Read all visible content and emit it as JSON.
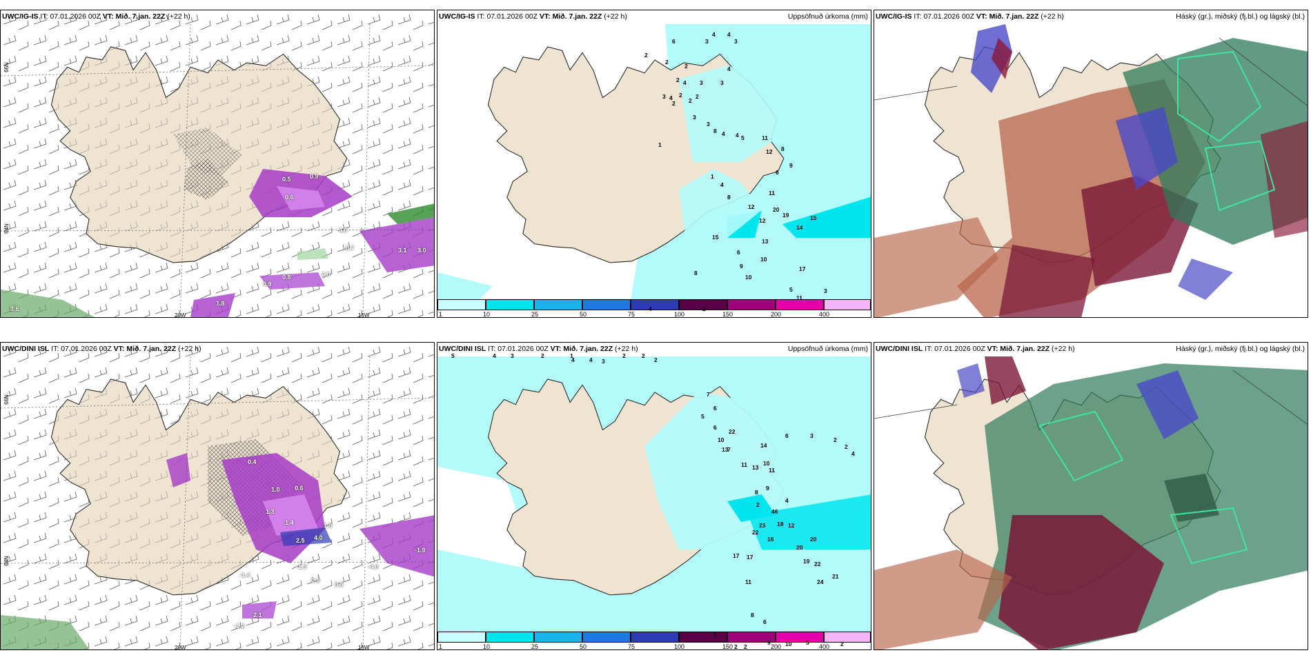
{
  "panels": [
    {
      "model": "UWC/IG-IS",
      "it_label": "IT:",
      "it": "07.01.2026 00Z",
      "vt_label": "VT:",
      "vt": "Mið. 7.jan. 22Z",
      "offset": "(+22 h)",
      "field": ""
    },
    {
      "model": "UWC/IG-IS",
      "it_label": "IT:",
      "it": "07.01.2026 00Z",
      "vt_label": "VT:",
      "vt": "Mið. 7.jan. 22Z",
      "offset": "(+22 h)",
      "field": "Uppsöfnuð úrkoma (mm)"
    },
    {
      "model": "UWC/IG-IS",
      "it_label": "IT:",
      "it": "07.01.2026 00Z",
      "vt_label": "VT:",
      "vt": "Mið. 7.jan. 22Z",
      "offset": "(+22 h)",
      "field": "Háský (gr.), miðský (fj.bl.) og lágský (bl.)"
    },
    {
      "model": "UWC/DINI ISL",
      "it_label": "IT:",
      "it": "07.01.2026 00Z",
      "vt_label": "VT:",
      "vt": "Mið. 7.jan. 22Z",
      "offset": "(+22 h)",
      "field": ""
    },
    {
      "model": "UWC/DINI ISL",
      "it_label": "IT:",
      "it": "07.01.2026 00Z",
      "vt_label": "VT:",
      "vt": "Mið. 7.jan. 22Z",
      "offset": "(+22 h)",
      "field": "Uppsöfnuð úrkoma (mm)"
    },
    {
      "model": "UWC/DINI ISL",
      "it_label": "IT:",
      "it": "07.01.2026 00Z",
      "vt_label": "VT:",
      "vt": "Mið. 7.jan. 22Z",
      "offset": "(+22 h)",
      "field": "Háský (gr.), miðský (fj.bl.) og lágský (bl.)"
    }
  ],
  "axes": {
    "lon_20w": "20W",
    "lon_15w": "15W",
    "lat_66n": "66N",
    "lat_64n": "64N"
  },
  "colorbar": {
    "labels": [
      "1",
      "10",
      "25",
      "50",
      "75",
      "100",
      "150",
      "200",
      "400"
    ],
    "colors": [
      "#c8ffff",
      "#00e5ee",
      "#19b4ee",
      "#1e78e6",
      "#2d3cb4",
      "#5a0046",
      "#a00078",
      "#e600aa",
      "#f5b4f5"
    ]
  },
  "precip_top": [
    "6",
    "3",
    "4",
    "4",
    "3",
    "2",
    "4",
    "2",
    "2",
    "2",
    "4",
    "2",
    "2",
    "2",
    "3",
    "3",
    "4",
    "1",
    "3",
    "2",
    "3",
    "3",
    "8",
    "4",
    "4",
    "5",
    "11",
    "12",
    "6",
    "8",
    "9",
    "1",
    "4",
    "8",
    "12",
    "11",
    "20",
    "19",
    "12",
    "14",
    "15",
    "13",
    "15",
    "6",
    "10",
    "17",
    "8",
    "9",
    "10",
    "5",
    "11",
    "3",
    "2",
    "4"
  ],
  "precip_bot": [
    "5",
    "4",
    "3",
    "2",
    "1",
    "4",
    "4",
    "3",
    "2",
    "2",
    "2",
    "7",
    "6",
    "5",
    "6",
    "10",
    "13",
    "22",
    "14",
    "6",
    "3",
    "2",
    "2",
    "4",
    "7",
    "11",
    "13",
    "10",
    "11",
    "9",
    "8",
    "2",
    "46",
    "18",
    "12",
    "23",
    "22",
    "16",
    "20",
    "19",
    "22",
    "24",
    "21",
    "20",
    "17",
    "17",
    "11",
    "8",
    "6",
    "2",
    "2",
    "9",
    "10",
    "5",
    "2",
    "1",
    "4"
  ],
  "tvals_top": [
    "0.6",
    "0.5",
    "0.9",
    "4.0",
    "0.7",
    "3.1",
    "3.0",
    "0.8",
    "0.9",
    "1.8",
    "1.6",
    "4.0"
  ],
  "tvals_bot": [
    "0.4",
    "1.0",
    "0.6",
    "1.3",
    "1.4",
    "2.5",
    "4.0",
    "1.5",
    "-1.9",
    "0.9",
    "0.5",
    "-1.4",
    "-1.2",
    "2.1",
    "-4.0",
    "-1.9"
  ]
}
